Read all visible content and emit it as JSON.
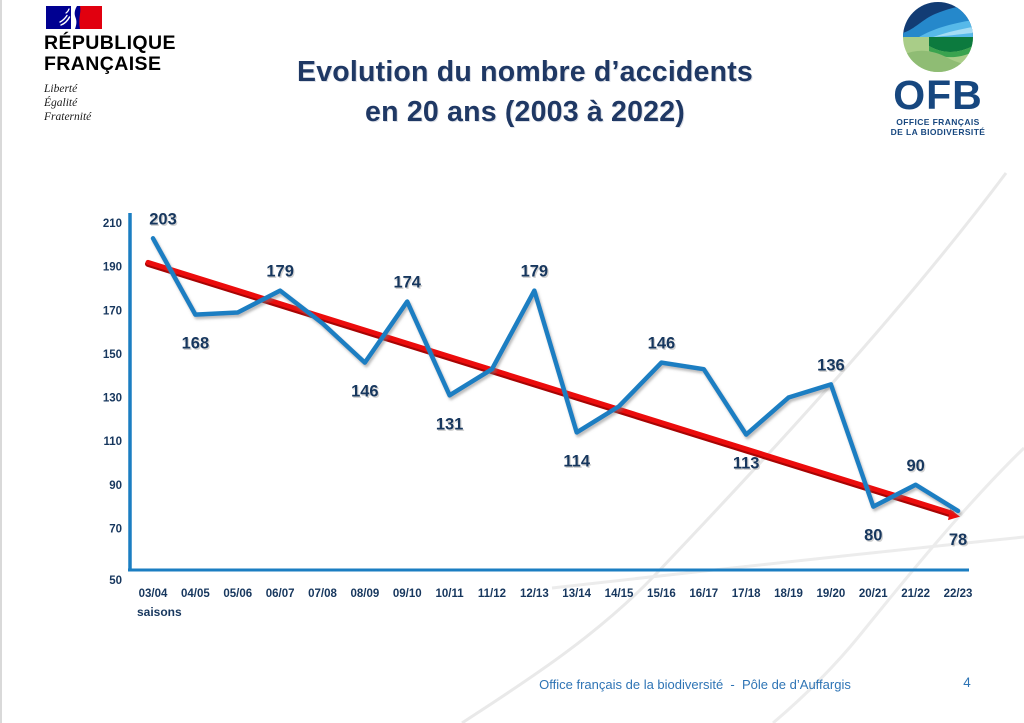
{
  "header": {
    "title_line1": "Evolution du nombre d’accidents",
    "title_line2": "en 20 ans (2003 à 2022)",
    "marianne": {
      "name_line1": "RÉPUBLIQUE",
      "name_line2": "FRANÇAISE",
      "motto_line1": "Liberté",
      "motto_line2": "Égalité",
      "motto_line3": "Fraternité"
    },
    "ofb": {
      "acronym": "OFB",
      "subtitle_line1": "OFFICE FRANÇAIS",
      "subtitle_line2": "DE LA BIODIVERSITÉ"
    }
  },
  "footer": {
    "credit": "Office français de la biodiversité  -  Pôle de d’Auffargis",
    "page_number": "4"
  },
  "chart_data": {
    "type": "line",
    "title": "Evolution du nombre d’accidents en 20 ans (2003 à 2022)",
    "xlabel": "saisons",
    "ylabel": "",
    "ylim": [
      50,
      210
    ],
    "yticks": [
      210,
      190,
      170,
      150,
      130,
      110,
      90,
      70,
      50
    ],
    "grid": false,
    "legend": "none",
    "categories": [
      "03/04",
      "04/05",
      "05/06",
      "06/07",
      "07/08",
      "08/09",
      "09/10",
      "10/11",
      "11/12",
      "12/13",
      "13/14",
      "14/15",
      "15/16",
      "16/17",
      "17/18",
      "18/19",
      "19/20",
      "20/21",
      "21/22",
      "22/23"
    ],
    "series": [
      {
        "name": "nombre d’accidents",
        "color": "#1b7ec2",
        "values": [
          203,
          168,
          169,
          179,
          164,
          146,
          174,
          131,
          143,
          179,
          114,
          126,
          146,
          143,
          113,
          130,
          136,
          80,
          90,
          78
        ],
        "label_positions": [
          "above",
          "below",
          null,
          "above",
          null,
          "below",
          "above",
          "below",
          null,
          "above",
          "below",
          null,
          "above",
          null,
          "below",
          null,
          "above",
          "below",
          "above",
          "below"
        ]
      }
    ],
    "trend": {
      "name": "tendance",
      "color": "#ec0c0c",
      "edge_color": "#a80404",
      "start_value": 192,
      "end_value": 77
    },
    "axis_color": "#1b7ec2",
    "label_color": "#17375e"
  }
}
